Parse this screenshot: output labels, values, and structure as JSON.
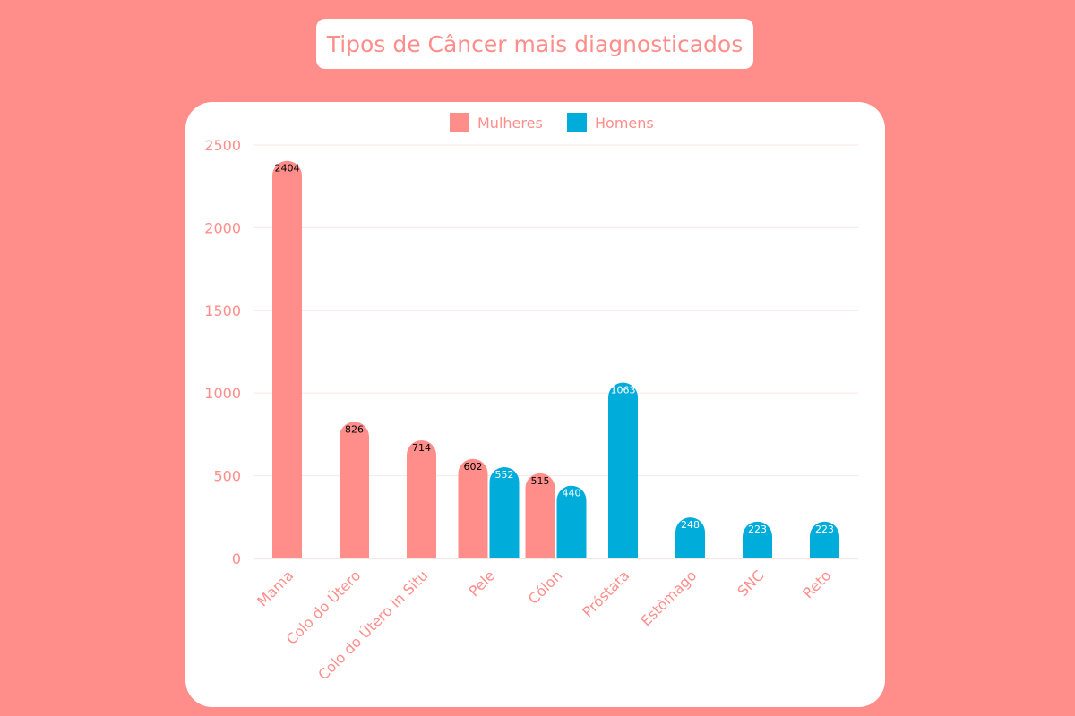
{
  "title": "Tipos de Câncer mais diagnosticados",
  "chart_data": {
    "type": "bar",
    "categories": [
      "Mama",
      "Colo do Útero",
      "Colo do Útero in Situ",
      "Pele",
      "Cólon",
      "Próstata",
      "Estômago",
      "SNC",
      "Reto"
    ],
    "series": [
      {
        "name": "Mulheres",
        "color": "#ff8e8b",
        "values": [
          2404,
          826,
          714,
          602,
          515,
          null,
          null,
          null,
          null
        ]
      },
      {
        "name": "Homens",
        "color": "#00acd9",
        "values": [
          null,
          null,
          null,
          552,
          440,
          1063,
          248,
          223,
          223
        ]
      }
    ],
    "ylim": [
      0,
      2500
    ],
    "yticks": [
      0,
      500,
      1000,
      1500,
      2000,
      2500
    ],
    "legend": "top",
    "grid": true
  }
}
